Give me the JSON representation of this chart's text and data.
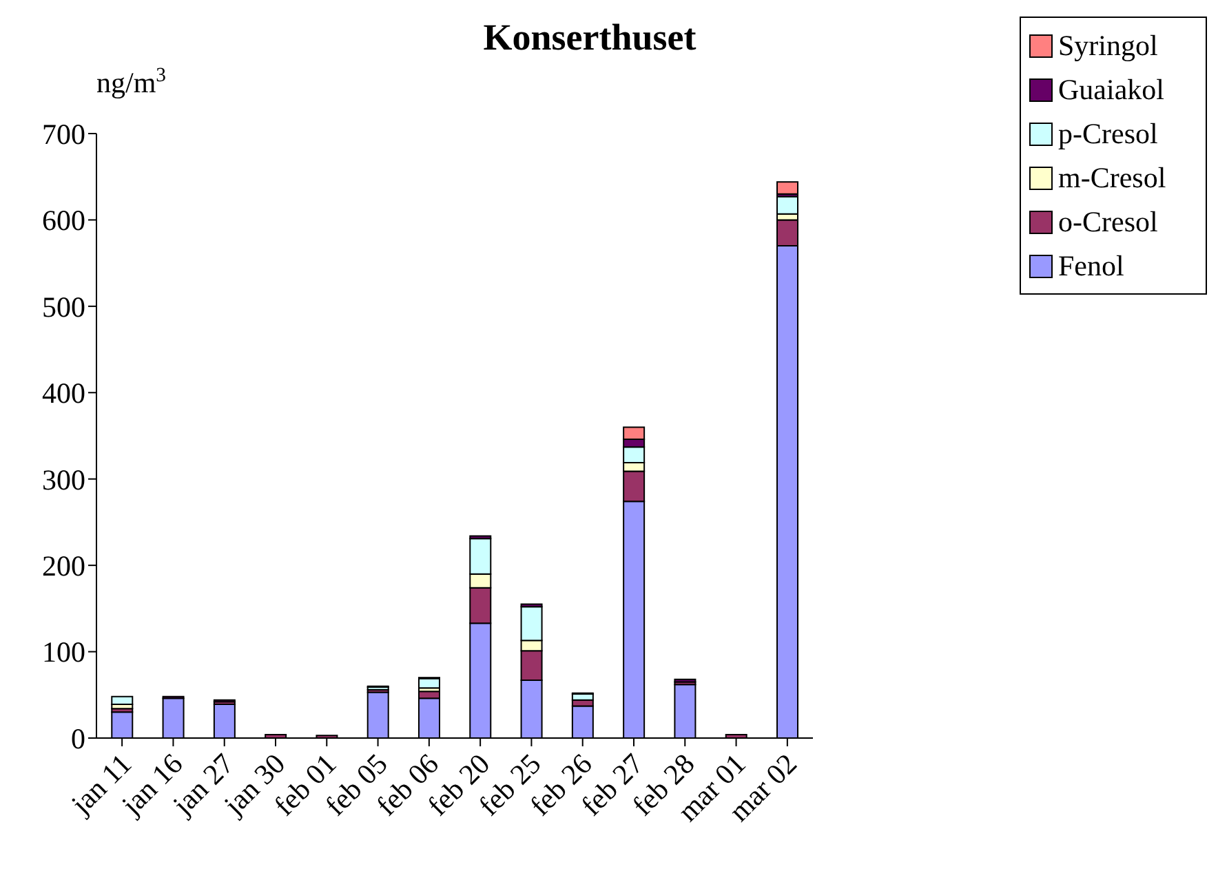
{
  "chart_data": {
    "type": "bar",
    "title": "Konserthuset",
    "ylabel": "ng/m$^{3}$",
    "stacked": true,
    "categories": [
      "jan 11",
      "jan 16",
      "jan 27",
      "jan 30",
      "feb 01",
      "feb 05",
      "feb 06",
      "feb 20",
      "feb 25",
      "feb 26",
      "feb 27",
      "feb 28",
      "mar 01",
      "mar 02"
    ],
    "series": [
      {
        "name": "Fenol",
        "color": "#9999ff",
        "values": [
          30,
          46,
          39,
          0,
          0,
          53,
          46,
          133,
          67,
          37,
          274,
          62,
          0,
          570
        ]
      },
      {
        "name": "o-Cresol",
        "color": "#993366",
        "values": [
          4,
          0,
          3,
          4,
          3,
          3,
          8,
          41,
          34,
          7,
          35,
          3,
          4,
          30
        ]
      },
      {
        "name": "m-Cresol",
        "color": "#ffffcc",
        "values": [
          5,
          0,
          0,
          0,
          0,
          null,
          4,
          16,
          12,
          null,
          10,
          0,
          0,
          7
        ]
      },
      {
        "name": "p-Cresol",
        "color": "#ccffff",
        "values": [
          9,
          0,
          0,
          0,
          0,
          3,
          11,
          41,
          39,
          7,
          18,
          0,
          0,
          20
        ]
      },
      {
        "name": "Guaiakol",
        "color": "#660066",
        "values": [
          0,
          2,
          2,
          0,
          0,
          1,
          1,
          3,
          3,
          1,
          9,
          3,
          0,
          3
        ]
      },
      {
        "name": "Syringol",
        "color": "#ff8080",
        "values": [
          0,
          0,
          0,
          0,
          0,
          0,
          0,
          0,
          0,
          0,
          14,
          0,
          0,
          14
        ]
      }
    ],
    "ylim": [
      0,
      700
    ],
    "yticks": [
      0,
      100,
      200,
      300,
      400,
      500,
      600,
      700
    ],
    "grid": false,
    "legend": "top right"
  }
}
